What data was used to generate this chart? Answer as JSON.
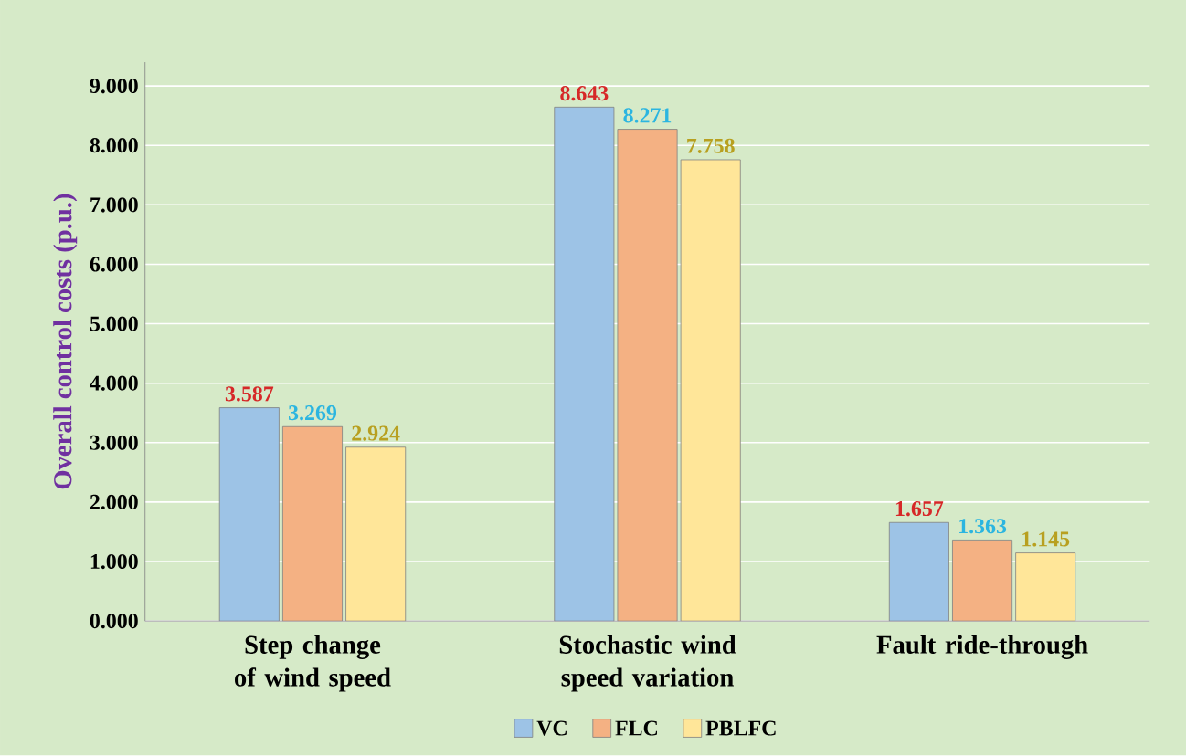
{
  "chart_data": {
    "type": "bar",
    "ylabel": "Overall control costs (p.u.)",
    "categories": [
      "Step change of wind speed",
      "Stochastic wind speed variation",
      "Fault ride-through"
    ],
    "series": [
      {
        "name": "VC",
        "color": "#9dc3e6",
        "values": [
          3.587,
          8.643,
          1.657
        ]
      },
      {
        "name": "FLC",
        "color": "#f4b183",
        "values": [
          3.269,
          8.271,
          1.363
        ]
      },
      {
        "name": "PBLFC",
        "color": "#ffe699",
        "values": [
          2.924,
          7.758,
          1.145
        ]
      }
    ],
    "ylim": [
      0,
      9.4
    ],
    "yticks": [
      {
        "value": 0,
        "label": "0.000"
      },
      {
        "value": 1,
        "label": "1.000"
      },
      {
        "value": 2,
        "label": "2.000"
      },
      {
        "value": 3,
        "label": "3.000"
      },
      {
        "value": 4,
        "label": "4.000"
      },
      {
        "value": 5,
        "label": "5.000"
      },
      {
        "value": 6,
        "label": "6.000"
      },
      {
        "value": 7,
        "label": "7.000"
      },
      {
        "value": 8,
        "label": "8.000"
      },
      {
        "value": 9,
        "label": "9.000"
      }
    ],
    "grid": "y",
    "legend": "bottom",
    "data_labels": true
  }
}
